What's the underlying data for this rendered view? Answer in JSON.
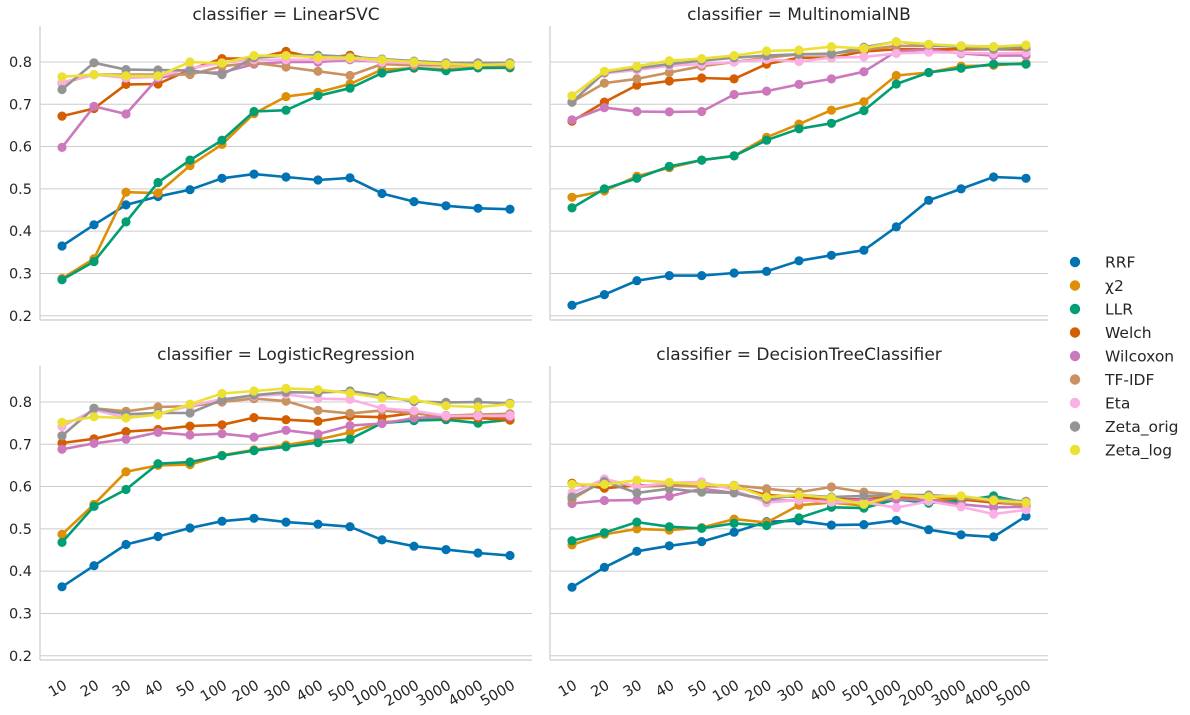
{
  "chart_data": {
    "type": "line",
    "categories": [
      "10",
      "20",
      "30",
      "40",
      "50",
      "100",
      "200",
      "300",
      "400",
      "500",
      "1000",
      "2000",
      "3000",
      "4000",
      "5000"
    ],
    "yticks": [
      0.2,
      0.3,
      0.4,
      0.5,
      0.6,
      0.7,
      0.8
    ],
    "ylim": [
      0.19,
      0.885
    ],
    "grid": "horizontal",
    "legend": {
      "position": "right",
      "entries": [
        "RRF",
        "χ2",
        "LLR",
        "Welch",
        "Wilcoxon",
        "TF-IDF",
        "Eta",
        "Zeta_orig",
        "Zeta_log"
      ]
    },
    "series_colors": {
      "RRF": "#0173b2",
      "χ2": "#de8f05",
      "LLR": "#029e73",
      "Welch": "#d55e00",
      "Wilcoxon": "#cc78bc",
      "TF-IDF": "#ca9161",
      "Eta": "#fbafe4",
      "Zeta_orig": "#949494",
      "Zeta_log": "#ece133"
    },
    "panels": [
      {
        "title": "classifier = LinearSVC",
        "series": [
          {
            "name": "RRF",
            "values": [
              0.365,
              0.415,
              0.462,
              0.482,
              0.498,
              0.525,
              0.535,
              0.528,
              0.521,
              0.526,
              0.489,
              0.47,
              0.46,
              0.454,
              0.452
            ]
          },
          {
            "name": "χ2",
            "values": [
              0.288,
              0.335,
              0.492,
              0.49,
              0.555,
              0.605,
              0.678,
              0.718,
              0.728,
              0.748,
              0.782,
              0.785,
              0.783,
              0.786,
              0.786
            ]
          },
          {
            "name": "LLR",
            "values": [
              0.285,
              0.328,
              0.422,
              0.515,
              0.568,
              0.615,
              0.683,
              0.686,
              0.72,
              0.738,
              0.774,
              0.786,
              0.779,
              0.786,
              0.787
            ]
          },
          {
            "name": "Welch",
            "values": [
              0.672,
              0.69,
              0.747,
              0.748,
              0.782,
              0.808,
              0.808,
              0.825,
              0.808,
              0.816,
              0.8,
              0.797,
              0.795,
              0.796,
              0.796
            ]
          },
          {
            "name": "Wilcoxon",
            "values": [
              0.598,
              0.695,
              0.677,
              0.762,
              0.775,
              0.775,
              0.795,
              0.8,
              0.8,
              0.805,
              0.8,
              0.795,
              0.795,
              0.795,
              0.795
            ]
          },
          {
            "name": "TF-IDF",
            "values": [
              0.75,
              0.77,
              0.77,
              0.77,
              0.77,
              0.79,
              0.798,
              0.788,
              0.778,
              0.768,
              0.795,
              0.792,
              0.792,
              0.792,
              0.792
            ]
          },
          {
            "name": "Eta",
            "values": [
              0.752,
              0.77,
              0.762,
              0.765,
              0.785,
              0.798,
              0.805,
              0.805,
              0.805,
              0.808,
              0.8,
              0.797,
              0.795,
              0.795,
              0.795
            ]
          },
          {
            "name": "Zeta_orig",
            "values": [
              0.735,
              0.798,
              0.782,
              0.781,
              0.78,
              0.77,
              0.81,
              0.815,
              0.816,
              0.812,
              0.807,
              0.802,
              0.798,
              0.798,
              0.798
            ]
          },
          {
            "name": "Zeta_log",
            "values": [
              0.765,
              0.77,
              0.767,
              0.767,
              0.8,
              0.797,
              0.815,
              0.815,
              0.811,
              0.81,
              0.805,
              0.8,
              0.795,
              0.793,
              0.795
            ]
          }
        ]
      },
      {
        "title": "classifier = MultinomialNB",
        "series": [
          {
            "name": "RRF",
            "values": [
              0.225,
              0.25,
              0.283,
              0.295,
              0.295,
              0.301,
              0.305,
              0.33,
              0.343,
              0.355,
              0.41,
              0.473,
              0.5,
              0.528,
              0.525
            ]
          },
          {
            "name": "χ2",
            "values": [
              0.48,
              0.495,
              0.53,
              0.55,
              0.568,
              0.578,
              0.622,
              0.653,
              0.686,
              0.706,
              0.768,
              0.775,
              0.79,
              0.792,
              0.797
            ]
          },
          {
            "name": "LLR",
            "values": [
              0.455,
              0.5,
              0.525,
              0.553,
              0.568,
              0.578,
              0.615,
              0.642,
              0.655,
              0.685,
              0.748,
              0.775,
              0.785,
              0.795,
              0.795
            ]
          },
          {
            "name": "Welch",
            "values": [
              0.66,
              0.705,
              0.745,
              0.755,
              0.762,
              0.76,
              0.795,
              0.81,
              0.81,
              0.825,
              0.83,
              0.83,
              0.83,
              0.83,
              0.83
            ]
          },
          {
            "name": "Wilcoxon",
            "values": [
              0.663,
              0.692,
              0.683,
              0.682,
              0.683,
              0.723,
              0.731,
              0.747,
              0.76,
              0.777,
              0.825,
              0.83,
              0.82,
              0.815,
              0.815
            ]
          },
          {
            "name": "TF-IDF",
            "values": [
              0.705,
              0.75,
              0.76,
              0.775,
              0.79,
              0.8,
              0.81,
              0.818,
              0.82,
              0.828,
              0.838,
              0.838,
              0.838,
              0.836,
              0.836
            ]
          },
          {
            "name": "Eta",
            "values": [
              0.72,
              0.773,
              0.781,
              0.791,
              0.795,
              0.8,
              0.806,
              0.801,
              0.81,
              0.812,
              0.82,
              0.823,
              0.822,
              0.82,
              0.822
            ]
          },
          {
            "name": "Zeta_orig",
            "values": [
              0.705,
              0.775,
              0.785,
              0.795,
              0.803,
              0.81,
              0.815,
              0.818,
              0.818,
              0.835,
              0.848,
              0.84,
              0.835,
              0.83,
              0.835
            ]
          },
          {
            "name": "Zeta_log",
            "values": [
              0.72,
              0.778,
              0.79,
              0.803,
              0.808,
              0.815,
              0.826,
              0.828,
              0.836,
              0.832,
              0.848,
              0.842,
              0.838,
              0.836,
              0.84
            ]
          }
        ]
      },
      {
        "title": "classifier = LogisticRegression",
        "series": [
          {
            "name": "RRF",
            "values": [
              0.363,
              0.413,
              0.463,
              0.482,
              0.502,
              0.518,
              0.525,
              0.516,
              0.511,
              0.505,
              0.474,
              0.459,
              0.451,
              0.443,
              0.437
            ]
          },
          {
            "name": "χ2",
            "values": [
              0.487,
              0.558,
              0.635,
              0.65,
              0.652,
              0.674,
              0.687,
              0.698,
              0.711,
              0.728,
              0.752,
              0.757,
              0.76,
              0.762,
              0.76
            ]
          },
          {
            "name": "LLR",
            "values": [
              0.468,
              0.553,
              0.593,
              0.654,
              0.658,
              0.673,
              0.685,
              0.694,
              0.704,
              0.712,
              0.75,
              0.756,
              0.758,
              0.75,
              0.758
            ]
          },
          {
            "name": "Welch",
            "values": [
              0.703,
              0.713,
              0.73,
              0.735,
              0.743,
              0.746,
              0.763,
              0.758,
              0.754,
              0.766,
              0.764,
              0.774,
              0.764,
              0.762,
              0.757
            ]
          },
          {
            "name": "Wilcoxon",
            "values": [
              0.688,
              0.702,
              0.712,
              0.728,
              0.722,
              0.725,
              0.717,
              0.733,
              0.724,
              0.744,
              0.749,
              0.762,
              0.766,
              0.768,
              0.765
            ]
          },
          {
            "name": "TF-IDF",
            "values": [
              0.72,
              0.785,
              0.778,
              0.788,
              0.79,
              0.8,
              0.808,
              0.802,
              0.78,
              0.773,
              0.78,
              0.773,
              0.768,
              0.77,
              0.772
            ]
          },
          {
            "name": "Eta",
            "values": [
              0.742,
              0.781,
              0.763,
              0.771,
              0.791,
              0.807,
              0.814,
              0.818,
              0.808,
              0.806,
              0.785,
              0.779,
              0.767,
              0.767,
              0.768
            ]
          },
          {
            "name": "Zeta_orig",
            "values": [
              0.72,
              0.785,
              0.771,
              0.774,
              0.774,
              0.805,
              0.816,
              0.823,
              0.822,
              0.826,
              0.814,
              0.801,
              0.799,
              0.8,
              0.797
            ]
          },
          {
            "name": "Zeta_log",
            "values": [
              0.752,
              0.765,
              0.762,
              0.77,
              0.795,
              0.82,
              0.826,
              0.832,
              0.829,
              0.821,
              0.809,
              0.805,
              0.791,
              0.788,
              0.795
            ]
          }
        ]
      },
      {
        "title": "classifier = DecisionTreeClassifier",
        "series": [
          {
            "name": "RRF",
            "values": [
              0.362,
              0.409,
              0.447,
              0.46,
              0.47,
              0.492,
              0.517,
              0.519,
              0.509,
              0.51,
              0.52,
              0.498,
              0.486,
              0.481,
              0.53
            ]
          },
          {
            "name": "χ2",
            "values": [
              0.462,
              0.487,
              0.5,
              0.497,
              0.503,
              0.523,
              0.515,
              0.556,
              0.562,
              0.555,
              0.576,
              0.567,
              0.57,
              0.568,
              0.565
            ]
          },
          {
            "name": "LLR",
            "values": [
              0.472,
              0.491,
              0.516,
              0.505,
              0.501,
              0.513,
              0.508,
              0.526,
              0.551,
              0.549,
              0.57,
              0.561,
              0.566,
              0.578,
              0.561
            ]
          },
          {
            "name": "Welch",
            "values": [
              0.608,
              0.596,
              0.603,
              0.603,
              0.601,
              0.6,
              0.58,
              0.575,
              0.57,
              0.57,
              0.577,
              0.577,
              0.57,
              0.562,
              0.557
            ]
          },
          {
            "name": "Wilcoxon",
            "values": [
              0.56,
              0.567,
              0.568,
              0.577,
              0.595,
              0.585,
              0.567,
              0.567,
              0.567,
              0.568,
              0.57,
              0.567,
              0.558,
              0.551,
              0.552
            ]
          },
          {
            "name": "TF-IDF",
            "values": [
              0.57,
              0.615,
              0.6,
              0.602,
              0.6,
              0.603,
              0.595,
              0.587,
              0.599,
              0.587,
              0.581,
              0.579,
              0.573,
              0.566,
              0.553
            ]
          },
          {
            "name": "Eta",
            "values": [
              0.585,
              0.618,
              0.6,
              0.609,
              0.611,
              0.592,
              0.562,
              0.568,
              0.563,
              0.563,
              0.55,
              0.565,
              0.552,
              0.535,
              0.545
            ]
          },
          {
            "name": "Zeta_orig",
            "values": [
              0.575,
              0.612,
              0.585,
              0.595,
              0.587,
              0.585,
              0.57,
              0.58,
              0.575,
              0.578,
              0.58,
              0.58,
              0.575,
              0.57,
              0.565
            ]
          },
          {
            "name": "Zeta_log",
            "values": [
              0.605,
              0.605,
              0.615,
              0.61,
              0.605,
              0.602,
              0.575,
              0.58,
              0.573,
              0.558,
              0.58,
              0.576,
              0.578,
              0.567,
              0.562
            ]
          }
        ]
      }
    ]
  }
}
